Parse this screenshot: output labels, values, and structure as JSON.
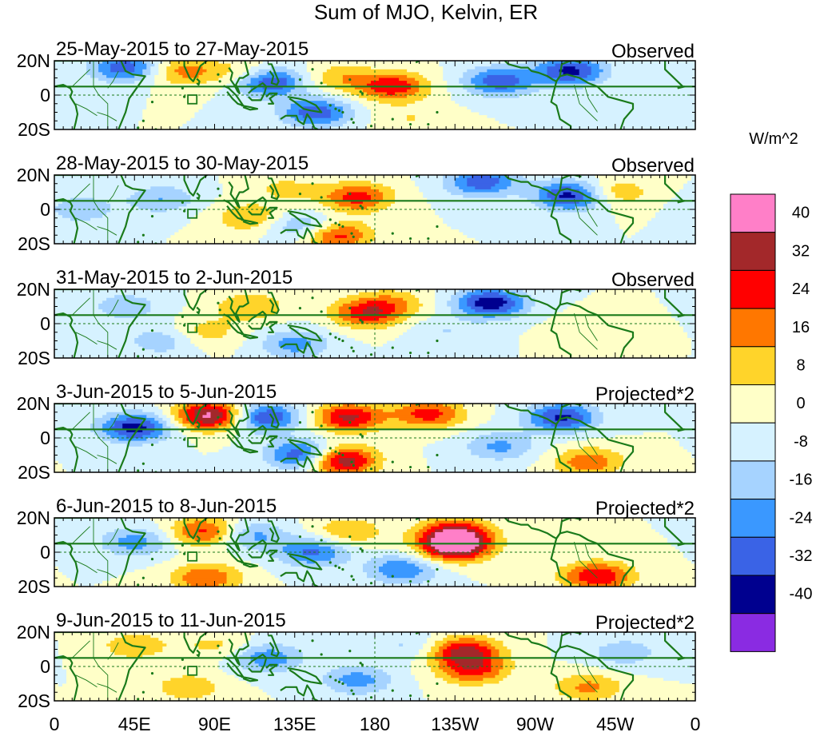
{
  "figure": {
    "title": "Sum of MJO, Kelvin, ER",
    "panels": [
      {
        "date_range": "25-May-2015 to 27-May-2015",
        "kind": "Observed"
      },
      {
        "date_range": "28-May-2015 to 30-May-2015",
        "kind": "Observed"
      },
      {
        "date_range": "31-May-2015 to 2-Jun-2015",
        "kind": "Observed"
      },
      {
        "date_range": "3-Jun-2015 to 5-Jun-2015",
        "kind": "Projected*2"
      },
      {
        "date_range": "6-Jun-2015 to 8-Jun-2015",
        "kind": "Projected*2"
      },
      {
        "date_range": "9-Jun-2015 to 11-Jun-2015",
        "kind": "Projected*2"
      }
    ],
    "lat_labels": [
      "20N",
      "0",
      "20S"
    ],
    "lon_labels": [
      "0",
      "45E",
      "90E",
      "135E",
      "180",
      "135W",
      "90W",
      "45W",
      "0"
    ],
    "colorbar": {
      "units": "W/m^2",
      "labels": [
        "40",
        "32",
        "24",
        "16",
        "8",
        "0",
        "-8",
        "-16",
        "-24",
        "-32",
        "-40"
      ],
      "colors": [
        "#ff7fc8",
        "#a3282a",
        "#ff0000",
        "#ff7700",
        "#ffd42a",
        "#ffffc8",
        "#d6f2ff",
        "#a6d3ff",
        "#3a98ff",
        "#3a63e6",
        "#00008f",
        "#8a2be2"
      ]
    }
  },
  "chart_data": {
    "type": "heatmap",
    "title": "Sum of MJO, Kelvin, ER",
    "units": "W/m^2",
    "x_range": [
      0,
      360
    ],
    "y_range": [
      -20,
      20
    ],
    "levels": [
      -40,
      -32,
      -24,
      -16,
      -8,
      0,
      8,
      16,
      24,
      32,
      40
    ],
    "panels": [
      {
        "dates": "25-May-2015 to 27-May-2015",
        "kind": "Observed",
        "features": [
          {
            "lon": 120,
            "lat": 8,
            "value": -38
          },
          {
            "lon": 147,
            "lat": -10,
            "value": -30
          },
          {
            "lon": 72,
            "lat": 14,
            "value": 20
          },
          {
            "lon": 108,
            "lat": 12,
            "value": 16
          },
          {
            "lon": 190,
            "lat": 5,
            "value": 30
          },
          {
            "lon": 160,
            "lat": 10,
            "value": 14
          },
          {
            "lon": 250,
            "lat": 8,
            "value": -30
          },
          {
            "lon": 290,
            "lat": 14,
            "value": -34
          },
          {
            "lon": 40,
            "lat": 16,
            "value": -30
          },
          {
            "lon": 200,
            "lat": -14,
            "value": 8
          }
        ]
      },
      {
        "dates": "28-May-2015 to 30-May-2015",
        "kind": "Observed",
        "features": [
          {
            "lon": 170,
            "lat": 7,
            "value": 28
          },
          {
            "lon": 158,
            "lat": -15,
            "value": 30
          },
          {
            "lon": 110,
            "lat": -5,
            "value": 16
          },
          {
            "lon": 140,
            "lat": -10,
            "value": -20
          },
          {
            "lon": 240,
            "lat": 16,
            "value": -30
          },
          {
            "lon": 290,
            "lat": 8,
            "value": -36
          },
          {
            "lon": 60,
            "lat": 6,
            "value": -16
          },
          {
            "lon": 130,
            "lat": 12,
            "value": 10
          },
          {
            "lon": 315,
            "lat": 10,
            "value": 16
          },
          {
            "lon": 15,
            "lat": 0,
            "value": -14
          }
        ]
      },
      {
        "dates": "31-May-2015 to 2-Jun-2015",
        "kind": "Observed",
        "features": [
          {
            "lon": 175,
            "lat": 6,
            "value": 28
          },
          {
            "lon": 190,
            "lat": 12,
            "value": 14
          },
          {
            "lon": 245,
            "lat": 12,
            "value": -38
          },
          {
            "lon": 110,
            "lat": 10,
            "value": 16
          },
          {
            "lon": 135,
            "lat": -12,
            "value": -20
          },
          {
            "lon": 60,
            "lat": -10,
            "value": -14
          },
          {
            "lon": 40,
            "lat": 10,
            "value": -14
          },
          {
            "lon": 300,
            "lat": -5,
            "value": 8
          },
          {
            "lon": 220,
            "lat": -5,
            "value": -8
          },
          {
            "lon": 85,
            "lat": -5,
            "value": 12
          }
        ]
      },
      {
        "dates": "3-Jun-2015 to 5-Jun-2015",
        "kind": "Projected*2",
        "features": [
          {
            "lon": 88,
            "lat": 13,
            "value": 44
          },
          {
            "lon": 160,
            "lat": -13,
            "value": 44
          },
          {
            "lon": 165,
            "lat": 12,
            "value": 34
          },
          {
            "lon": 210,
            "lat": 14,
            "value": 28
          },
          {
            "lon": 140,
            "lat": -10,
            "value": -36
          },
          {
            "lon": 118,
            "lat": 12,
            "value": -34
          },
          {
            "lon": 45,
            "lat": 6,
            "value": -36
          },
          {
            "lon": 285,
            "lat": 12,
            "value": -34
          },
          {
            "lon": 300,
            "lat": -14,
            "value": 22
          },
          {
            "lon": 250,
            "lat": -5,
            "value": -18
          }
        ]
      },
      {
        "dates": "6-Jun-2015 to 8-Jun-2015",
        "kind": "Projected*2",
        "features": [
          {
            "lon": 225,
            "lat": 3,
            "value": 44
          },
          {
            "lon": 225,
            "lat": 11,
            "value": 34
          },
          {
            "lon": 305,
            "lat": -14,
            "value": 32
          },
          {
            "lon": 85,
            "lat": 12,
            "value": 28
          },
          {
            "lon": 85,
            "lat": -15,
            "value": 24
          },
          {
            "lon": 145,
            "lat": 0,
            "value": -26
          },
          {
            "lon": 195,
            "lat": -10,
            "value": -24
          },
          {
            "lon": 110,
            "lat": 10,
            "value": -20
          },
          {
            "lon": 45,
            "lat": 6,
            "value": -20
          },
          {
            "lon": 165,
            "lat": 12,
            "value": 16
          }
        ]
      },
      {
        "dates": "9-Jun-2015 to 11-Jun-2015",
        "kind": "Projected*2",
        "features": [
          {
            "lon": 230,
            "lat": 9,
            "value": 34
          },
          {
            "lon": 235,
            "lat": -2,
            "value": 26
          },
          {
            "lon": 120,
            "lat": 5,
            "value": -22
          },
          {
            "lon": 170,
            "lat": -8,
            "value": -20
          },
          {
            "lon": 300,
            "lat": -12,
            "value": 18
          },
          {
            "lon": 75,
            "lat": -12,
            "value": 14
          },
          {
            "lon": 45,
            "lat": 12,
            "value": 14
          },
          {
            "lon": 200,
            "lat": 12,
            "value": -10
          },
          {
            "lon": 320,
            "lat": 8,
            "value": -14
          },
          {
            "lon": 90,
            "lat": 12,
            "value": 10
          }
        ]
      }
    ]
  }
}
